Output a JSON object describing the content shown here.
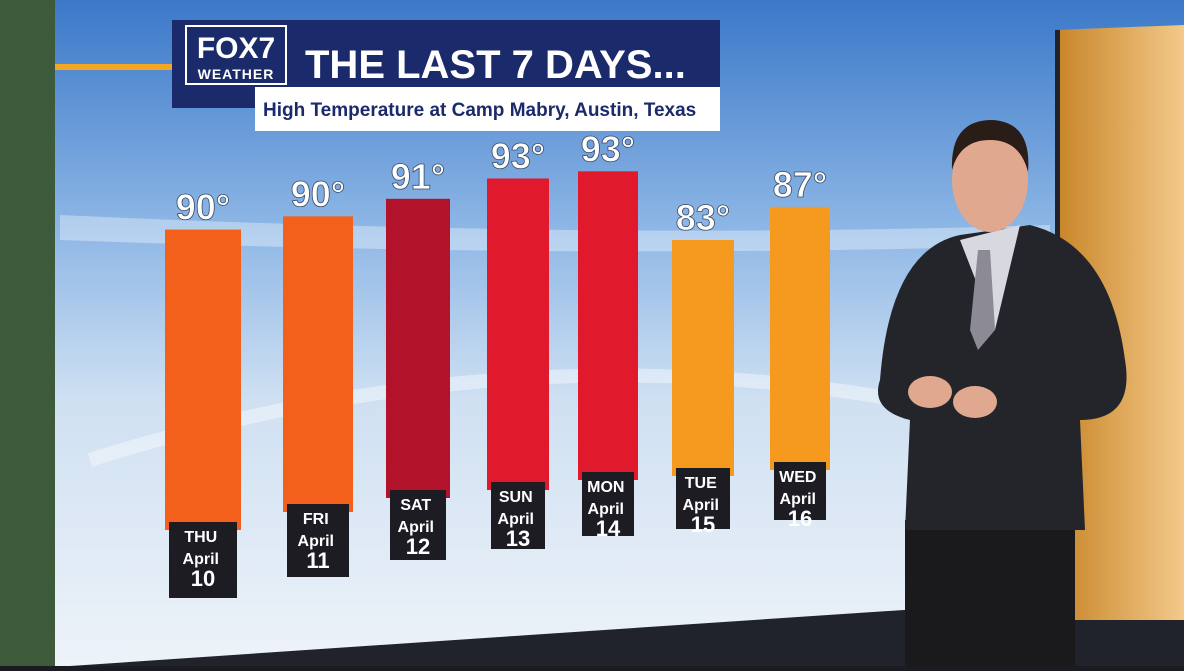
{
  "branding": {
    "name": "FOX7",
    "tag": "WEATHER"
  },
  "chart_data": {
    "type": "bar",
    "title": "THE LAST 7 DAYS...",
    "subtitle": "High Temperature at Camp Mabry, Austin, Texas",
    "categories": [
      "THU April 10",
      "FRI April 11",
      "SAT April 12",
      "SUN April 13",
      "MON April 14",
      "TUE April 15",
      "WED April 16"
    ],
    "values": [
      90,
      90,
      91,
      93,
      93,
      83,
      87
    ],
    "value_labels": [
      "90°",
      "90°",
      "91°",
      "93°",
      "93°",
      "83°",
      "87°"
    ],
    "colors": [
      "#f2601c",
      "#f2601c",
      "#b3122b",
      "#e0192c",
      "#e0192c",
      "#f59a1e",
      "#f59a1e"
    ],
    "ylim": [
      50,
      95
    ]
  }
}
